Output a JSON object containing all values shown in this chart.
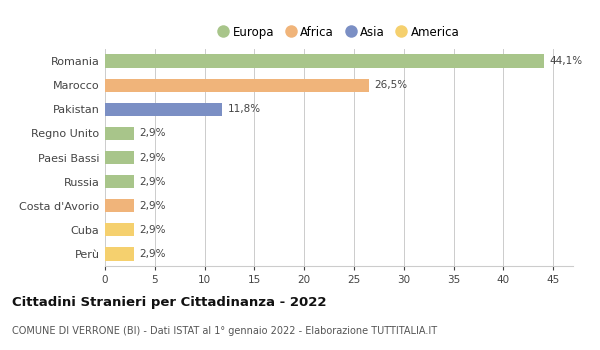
{
  "categories": [
    "Romania",
    "Marocco",
    "Pakistan",
    "Regno Unito",
    "Paesi Bassi",
    "Russia",
    "Costa d'Avorio",
    "Cuba",
    "Perù"
  ],
  "values": [
    44.1,
    26.5,
    11.8,
    2.9,
    2.9,
    2.9,
    2.9,
    2.9,
    2.9
  ],
  "labels": [
    "44,1%",
    "26,5%",
    "11,8%",
    "2,9%",
    "2,9%",
    "2,9%",
    "2,9%",
    "2,9%",
    "2,9%"
  ],
  "colors": [
    "#a8c58a",
    "#f0b47a",
    "#7b8fc4",
    "#a8c58a",
    "#a8c58a",
    "#a8c58a",
    "#f0b47a",
    "#f5d06e",
    "#f5d06e"
  ],
  "legend": [
    {
      "label": "Europa",
      "color": "#a8c58a"
    },
    {
      "label": "Africa",
      "color": "#f0b47a"
    },
    {
      "label": "Asia",
      "color": "#7b8fc4"
    },
    {
      "label": "America",
      "color": "#f5d06e"
    }
  ],
  "title": "Cittadini Stranieri per Cittadinanza - 2022",
  "subtitle": "COMUNE DI VERRONE (BI) - Dati ISTAT al 1° gennaio 2022 - Elaborazione TUTTITALIA.IT",
  "xlim": [
    0,
    47
  ],
  "xtick_interval": 5,
  "background_color": "#ffffff",
  "grid_color": "#cccccc",
  "bar_height": 0.55
}
